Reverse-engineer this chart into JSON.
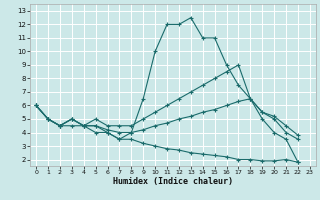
{
  "xlabel": "Humidex (Indice chaleur)",
  "bg_color": "#cce8e8",
  "grid_color": "#ffffff",
  "line_color": "#1a6b6b",
  "xlim": [
    -0.5,
    23.5
  ],
  "ylim": [
    1.5,
    13.5
  ],
  "xticks": [
    0,
    1,
    2,
    3,
    4,
    5,
    6,
    7,
    8,
    9,
    10,
    11,
    12,
    13,
    14,
    15,
    16,
    17,
    18,
    19,
    20,
    21,
    22,
    23
  ],
  "yticks": [
    2,
    3,
    4,
    5,
    6,
    7,
    8,
    9,
    10,
    11,
    12,
    13
  ],
  "line1_x": [
    0,
    1,
    2,
    3,
    4,
    5,
    6,
    7,
    8,
    9,
    10,
    11,
    12,
    13,
    14,
    15,
    16,
    17,
    18,
    19,
    20,
    21,
    22
  ],
  "line1_y": [
    6.0,
    5.0,
    4.5,
    5.0,
    4.5,
    4.5,
    4.0,
    3.5,
    4.0,
    6.5,
    10.0,
    12.0,
    12.0,
    12.5,
    11.0,
    11.0,
    9.0,
    7.5,
    6.5,
    5.0,
    4.0,
    3.5,
    1.8
  ],
  "line2_x": [
    0,
    1,
    2,
    3,
    4,
    5,
    6,
    7,
    8,
    9,
    10,
    11,
    12,
    13,
    14,
    15,
    16,
    17,
    18,
    19,
    20,
    21,
    22
  ],
  "line2_y": [
    6.0,
    5.0,
    4.5,
    5.0,
    4.5,
    5.0,
    4.5,
    4.5,
    4.5,
    5.0,
    5.5,
    6.0,
    6.5,
    7.0,
    7.5,
    8.0,
    8.5,
    9.0,
    6.5,
    5.5,
    5.0,
    4.0,
    3.5
  ],
  "line3_x": [
    0,
    1,
    2,
    3,
    4,
    5,
    6,
    7,
    8,
    9,
    10,
    11,
    12,
    13,
    14,
    15,
    16,
    17,
    18,
    19,
    20,
    21,
    22
  ],
  "line3_y": [
    6.0,
    5.0,
    4.5,
    5.0,
    4.5,
    4.5,
    4.2,
    4.0,
    4.0,
    4.2,
    4.5,
    4.7,
    5.0,
    5.2,
    5.5,
    5.7,
    6.0,
    6.3,
    6.5,
    5.5,
    5.2,
    4.5,
    3.8
  ],
  "line4_x": [
    0,
    1,
    2,
    3,
    4,
    5,
    6,
    7,
    8,
    9,
    10,
    11,
    12,
    13,
    14,
    15,
    16,
    17,
    18,
    19,
    20,
    21,
    22
  ],
  "line4_y": [
    6.0,
    5.0,
    4.5,
    4.5,
    4.5,
    4.0,
    4.0,
    3.5,
    3.5,
    3.2,
    3.0,
    2.8,
    2.7,
    2.5,
    2.4,
    2.3,
    2.2,
    2.0,
    2.0,
    1.9,
    1.9,
    2.0,
    1.8
  ]
}
